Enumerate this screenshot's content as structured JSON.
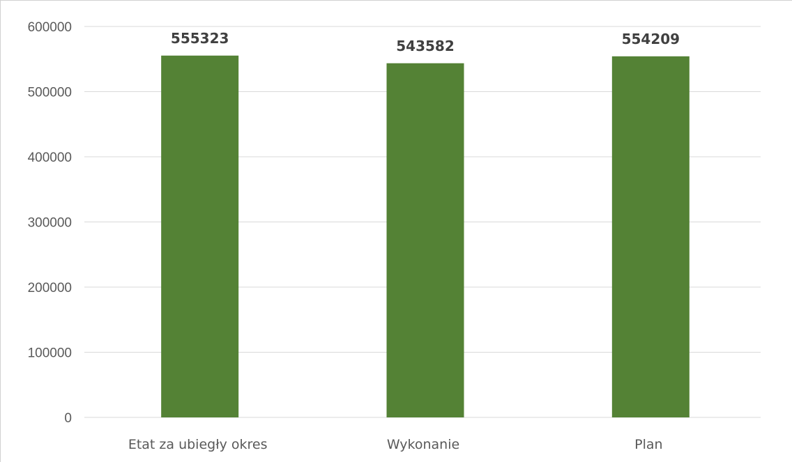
{
  "chart_data": {
    "type": "bar",
    "categories": [
      "Etat za ubiegły okres",
      "Wykonanie",
      "Plan"
    ],
    "values": [
      555323,
      543582,
      554209
    ],
    "data_labels": [
      "555323",
      "543582",
      "554209"
    ],
    "title": "",
    "xlabel": "",
    "ylabel": "",
    "ylim": [
      0,
      600000
    ],
    "yticks": [
      0,
      100000,
      200000,
      300000,
      400000,
      500000,
      600000
    ],
    "ytick_labels": [
      "0",
      "100000",
      "200000",
      "300000",
      "400000",
      "500000",
      "600000"
    ],
    "grid": true,
    "legend": "none",
    "bar_color": "#548235"
  }
}
